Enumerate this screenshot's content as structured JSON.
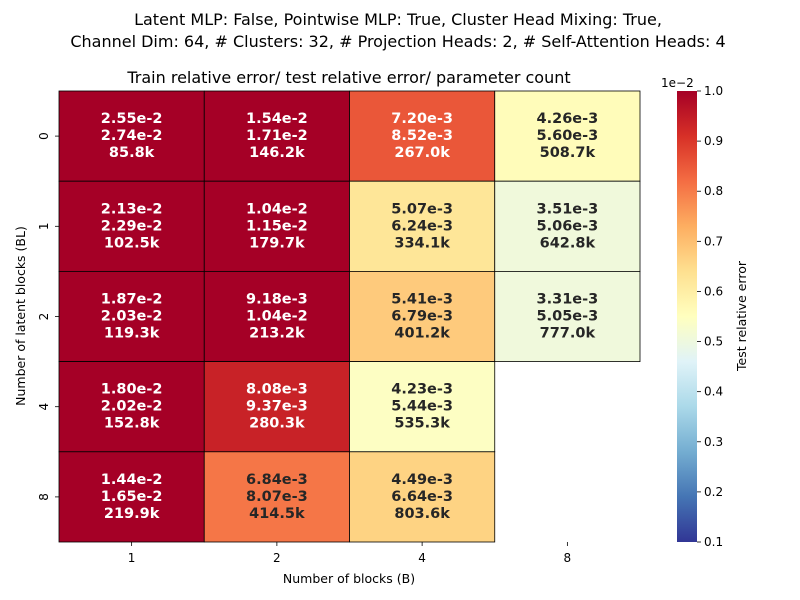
{
  "chart_data": {
    "type": "heatmap",
    "suptitle_lines": [
      "Latent MLP: False, Pointwise MLP: True, Cluster Head Mixing: True,",
      "Channel Dim: 64, # Clusters: 32, # Projection Heads: 2, # Self-Attention Heads: 4"
    ],
    "title": "Train relative error/ test relative error/ parameter count",
    "xlabel": "Number of blocks (B)",
    "ylabel": "Number of latent blocks (BL)",
    "x_categories": [
      "1",
      "2",
      "4",
      "8"
    ],
    "y_categories": [
      "0",
      "1",
      "2",
      "4",
      "8"
    ],
    "colorbar": {
      "label": "Test relative error",
      "multiplier_label": "1e−2",
      "min": 0.1,
      "max": 1.0,
      "colormap": "RdYlBu_r",
      "ticks": [
        "0.1",
        "0.2",
        "0.3",
        "0.4",
        "0.5",
        "0.6",
        "0.7",
        "0.8",
        "0.9",
        "1.0"
      ]
    },
    "cells": [
      [
        {
          "train": "2.55e-2",
          "test": "2.74e-2",
          "params": "85.8k",
          "value": 2.74
        },
        {
          "train": "1.54e-2",
          "test": "1.71e-2",
          "params": "146.2k",
          "value": 1.71
        },
        {
          "train": "7.20e-3",
          "test": "8.52e-3",
          "params": "267.0k",
          "value": 0.852
        },
        {
          "train": "4.26e-3",
          "test": "5.60e-3",
          "params": "508.7k",
          "value": 0.56
        }
      ],
      [
        {
          "train": "2.13e-2",
          "test": "2.29e-2",
          "params": "102.5k",
          "value": 2.29
        },
        {
          "train": "1.04e-2",
          "test": "1.15e-2",
          "params": "179.7k",
          "value": 1.15
        },
        {
          "train": "5.07e-3",
          "test": "6.24e-3",
          "params": "334.1k",
          "value": 0.624
        },
        {
          "train": "3.51e-3",
          "test": "5.06e-3",
          "params": "642.8k",
          "value": 0.506
        }
      ],
      [
        {
          "train": "1.87e-2",
          "test": "2.03e-2",
          "params": "119.3k",
          "value": 2.03
        },
        {
          "train": "9.18e-3",
          "test": "1.04e-2",
          "params": "213.2k",
          "value": 1.04
        },
        {
          "train": "5.41e-3",
          "test": "6.79e-3",
          "params": "401.2k",
          "value": 0.679
        },
        {
          "train": "3.31e-3",
          "test": "5.05e-3",
          "params": "777.0k",
          "value": 0.505
        }
      ],
      [
        {
          "train": "1.80e-2",
          "test": "2.02e-2",
          "params": "152.8k",
          "value": 2.02
        },
        {
          "train": "8.08e-3",
          "test": "9.37e-3",
          "params": "280.3k",
          "value": 0.937
        },
        {
          "train": "4.23e-3",
          "test": "5.44e-3",
          "params": "535.3k",
          "value": 0.544
        },
        null
      ],
      [
        {
          "train": "1.44e-2",
          "test": "1.65e-2",
          "params": "219.9k",
          "value": 1.65
        },
        {
          "train": "6.84e-3",
          "test": "8.07e-3",
          "params": "414.5k",
          "value": 0.807
        },
        {
          "train": "4.49e-3",
          "test": "6.64e-3",
          "params": "803.6k",
          "value": 0.664
        },
        null
      ]
    ]
  }
}
